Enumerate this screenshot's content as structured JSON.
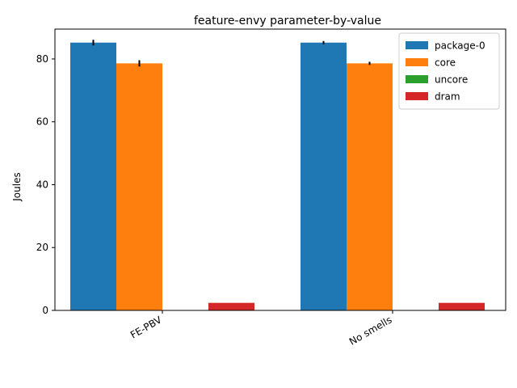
{
  "chart_data": {
    "type": "bar",
    "title": "feature-envy parameter-by-value",
    "xlabel": "",
    "ylabel": "Joules",
    "categories": [
      "FE-PBV",
      "No smells"
    ],
    "series": [
      {
        "name": "package-0",
        "values": [
          85.2,
          85.2
        ],
        "errors": [
          0.9,
          0.5
        ],
        "color": "#1f77b4"
      },
      {
        "name": "core",
        "values": [
          78.6,
          78.6
        ],
        "errors": [
          1.0,
          0.5
        ],
        "color": "#ff7f0e"
      },
      {
        "name": "uncore",
        "values": [
          0.0,
          0.0
        ],
        "errors": [
          0,
          0
        ],
        "color": "#2ca02c"
      },
      {
        "name": "dram",
        "values": [
          2.4,
          2.4
        ],
        "errors": [
          0,
          0
        ],
        "color": "#d62728"
      }
    ],
    "ylim": [
      0,
      89.5
    ],
    "yticks": [
      0,
      20,
      40,
      60,
      80
    ],
    "grid": false,
    "legend_position": "top-right"
  }
}
